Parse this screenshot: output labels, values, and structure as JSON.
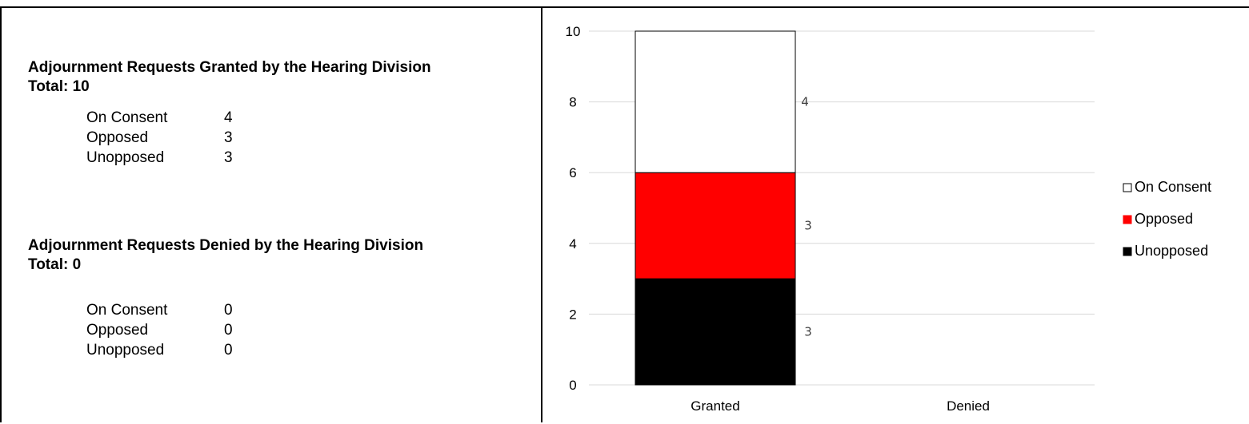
{
  "summary": {
    "granted": {
      "title": "Adjournment Requests Granted by the Hearing Division",
      "total_label": "Total: 10",
      "rows": [
        {
          "label": "On Consent",
          "value": "4"
        },
        {
          "label": "Opposed",
          "value": "3"
        },
        {
          "label": "Unopposed",
          "value": "3"
        }
      ]
    },
    "denied": {
      "title": "Adjournment Requests Denied by the Hearing Division",
      "total_label": "Total: 0",
      "rows": [
        {
          "label": "On Consent",
          "value": "0"
        },
        {
          "label": "Opposed",
          "value": "0"
        },
        {
          "label": "Unopposed",
          "value": "0"
        }
      ]
    }
  },
  "chart_data": {
    "type": "bar",
    "stacked": true,
    "categories": [
      "Granted",
      "Denied"
    ],
    "series": [
      {
        "name": "Unopposed",
        "values": [
          3,
          0
        ],
        "color": "#000000"
      },
      {
        "name": "Opposed",
        "values": [
          3,
          0
        ],
        "color": "#ff0000"
      },
      {
        "name": "On Consent",
        "values": [
          4,
          0
        ],
        "color": "#ffffff"
      }
    ],
    "ylim": [
      0,
      10
    ],
    "yticks": [
      "0",
      "2",
      "4",
      "6",
      "8",
      "10"
    ],
    "data_labels": [
      "3",
      "3",
      "4"
    ],
    "grid": true,
    "legend_position": "right",
    "legend_order": [
      "On Consent",
      "Opposed",
      "Unopposed"
    ],
    "title": "",
    "xlabel": "",
    "ylabel": ""
  }
}
